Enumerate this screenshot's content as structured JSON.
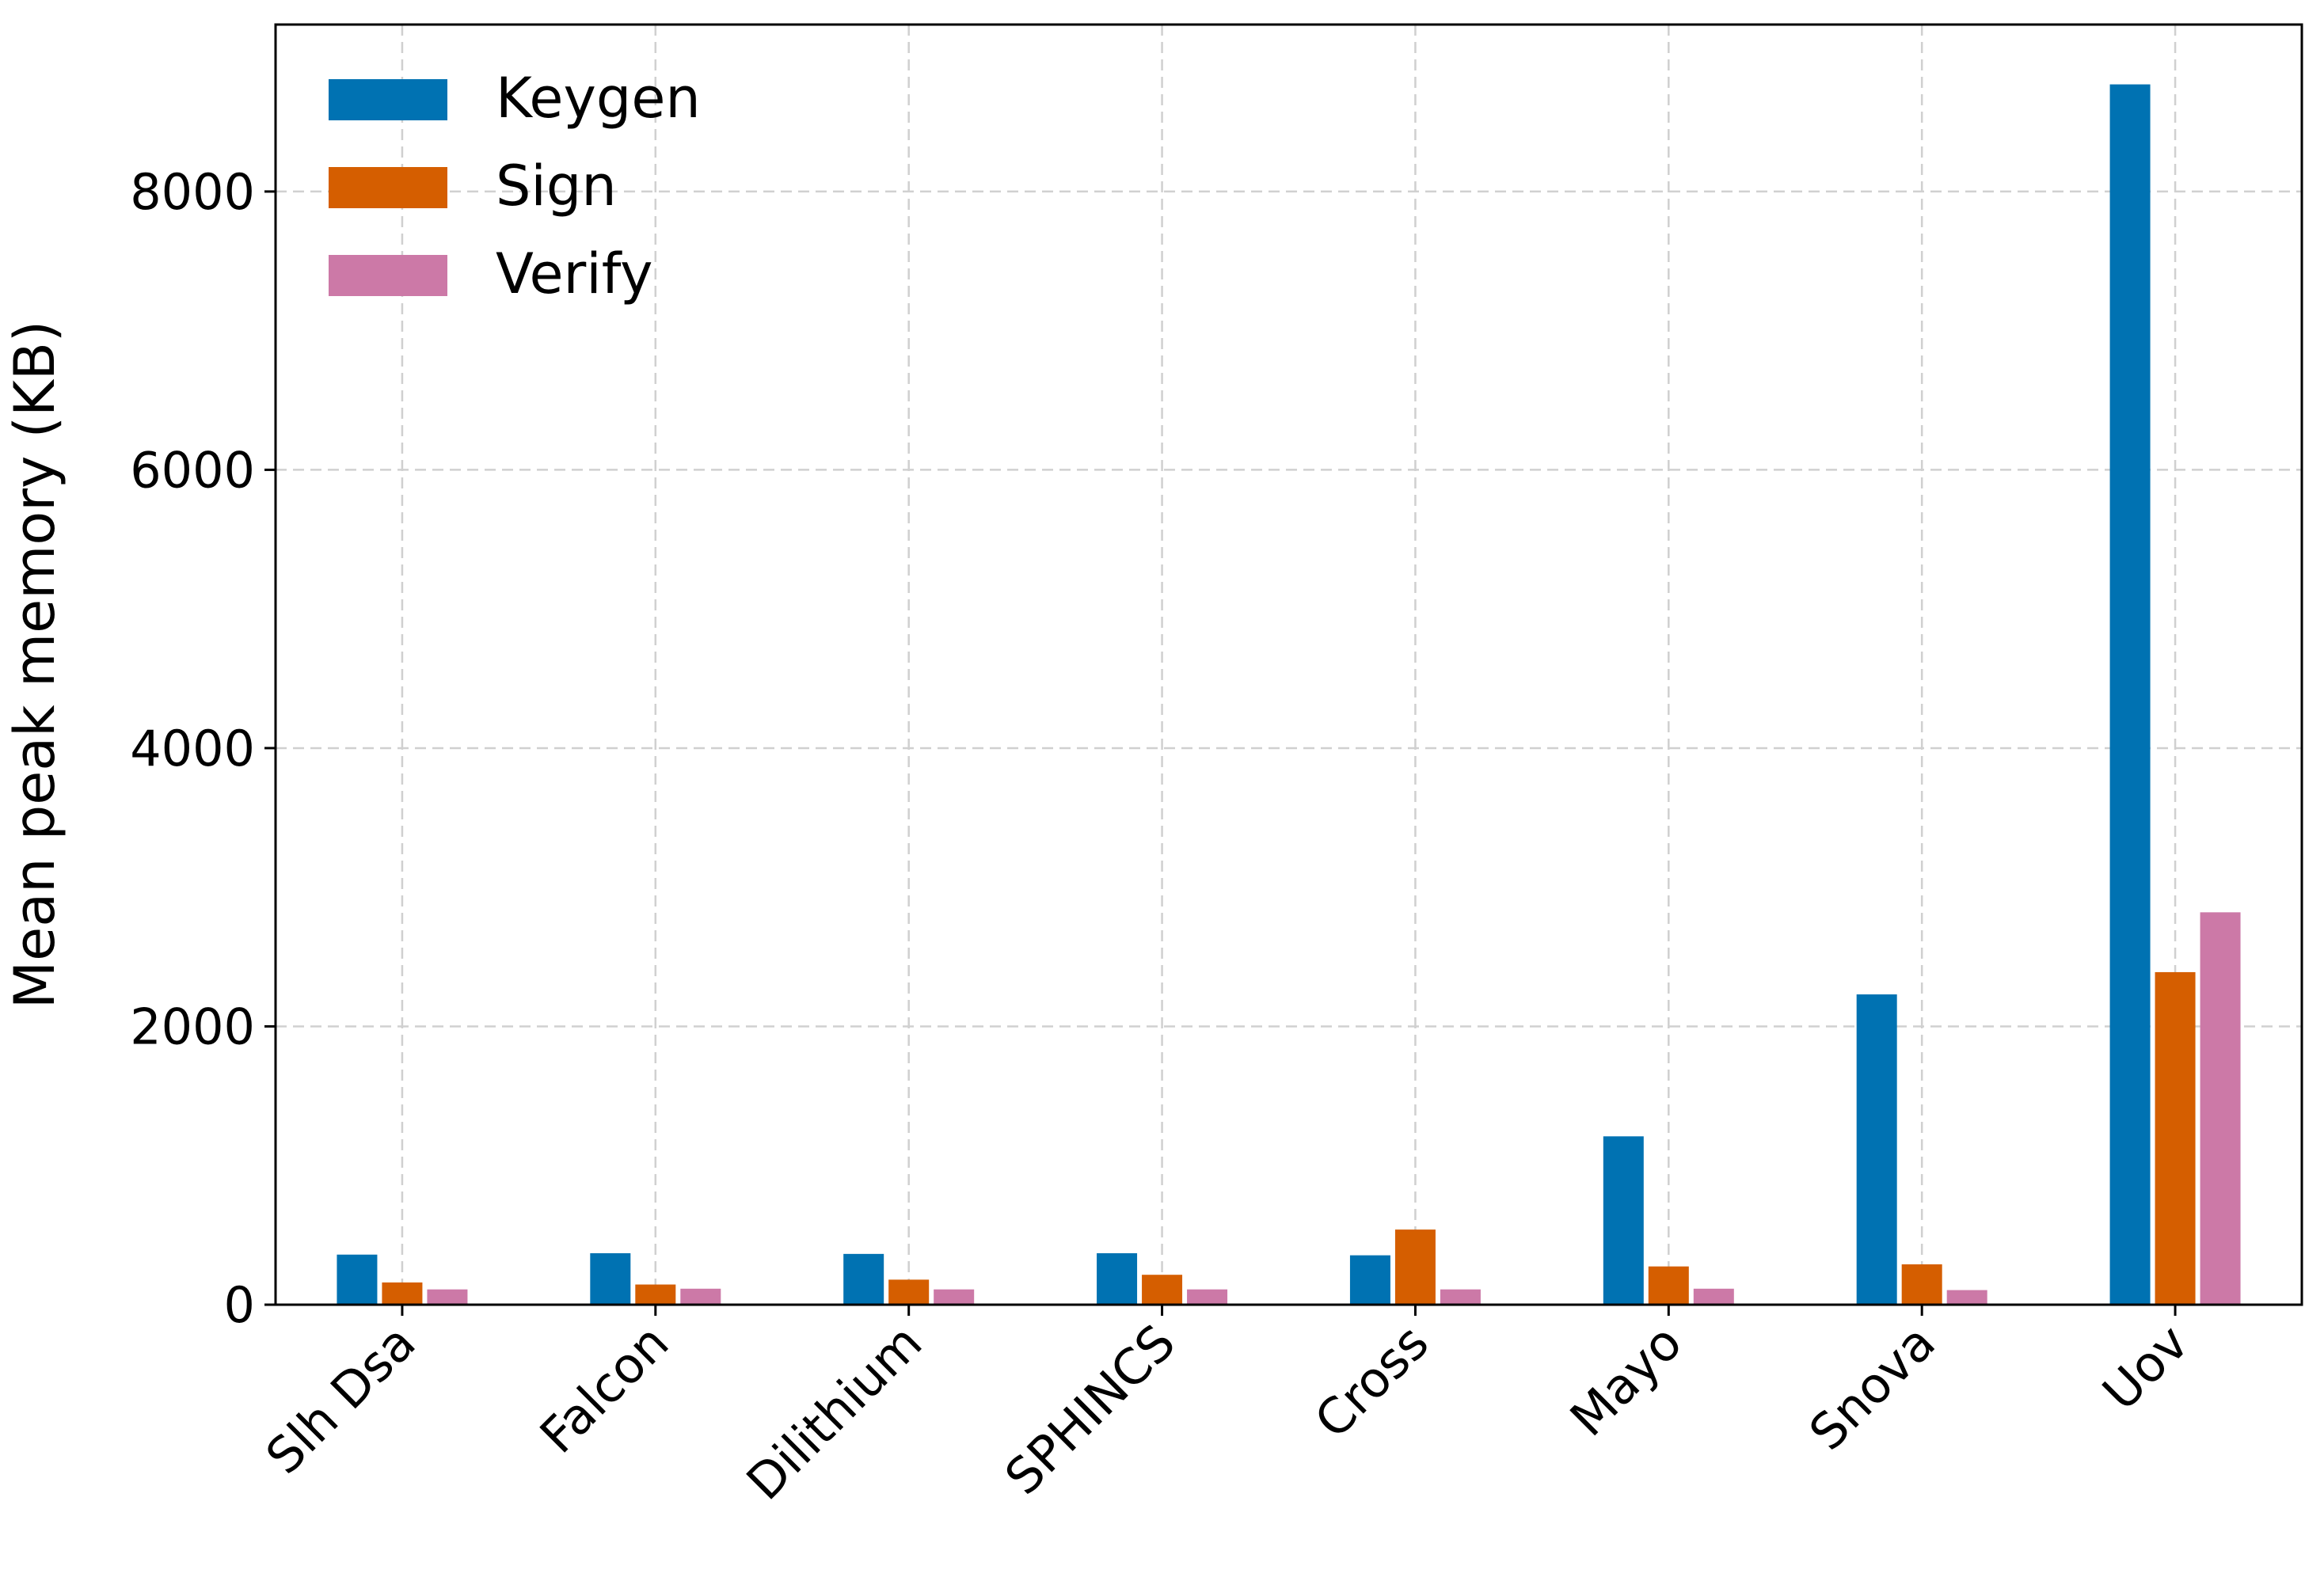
{
  "chart_data": {
    "type": "bar",
    "title": "",
    "xlabel": "",
    "ylabel": "Mean peak memory (KB)",
    "categories": [
      "Slh Dsa",
      "Falcon",
      "Dilithium",
      "SPHINCS",
      "Cross",
      "Mayo",
      "Snova",
      "Uov"
    ],
    "series": [
      {
        "name": "Keygen",
        "color": "#0072B2",
        "values": [
          360,
          370,
          365,
          370,
          355,
          1210,
          2230,
          8770
        ]
      },
      {
        "name": "Sign",
        "color": "#D55E00",
        "values": [
          160,
          145,
          180,
          215,
          540,
          275,
          290,
          2390
        ]
      },
      {
        "name": "Verify",
        "color": "#CC79A7",
        "values": [
          110,
          115,
          110,
          110,
          110,
          115,
          105,
          2820
        ]
      }
    ],
    "ylim": [
      0,
      9200
    ],
    "yticks": [
      0,
      2000,
      4000,
      6000,
      8000
    ],
    "ytick_labels": [
      "0",
      "2000",
      "4000",
      "6000",
      "8000"
    ],
    "xtick_rotation": 45,
    "grid": true,
    "legend_position": "upper left"
  }
}
